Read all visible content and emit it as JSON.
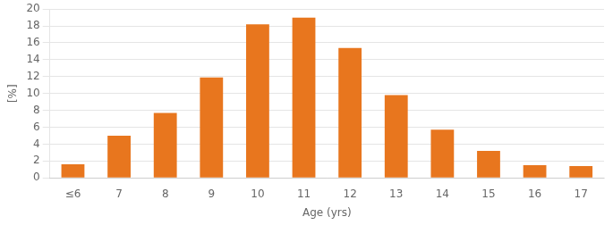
{
  "chart_data": {
    "type": "bar",
    "categories": [
      "≤6",
      "7",
      "8",
      "9",
      "10",
      "11",
      "12",
      "13",
      "14",
      "15",
      "16",
      "17"
    ],
    "values": [
      1.6,
      5.0,
      7.7,
      11.9,
      18.2,
      19.0,
      15.4,
      9.8,
      5.7,
      3.2,
      1.5,
      1.4
    ],
    "color": "#E8761E",
    "xlabel": "Age (yrs)",
    "ylabel": "[%]",
    "ylim": [
      0,
      20
    ],
    "yticks": [
      0,
      2,
      4,
      6,
      8,
      10,
      12,
      14,
      16,
      18,
      20
    ],
    "grid": true
  }
}
